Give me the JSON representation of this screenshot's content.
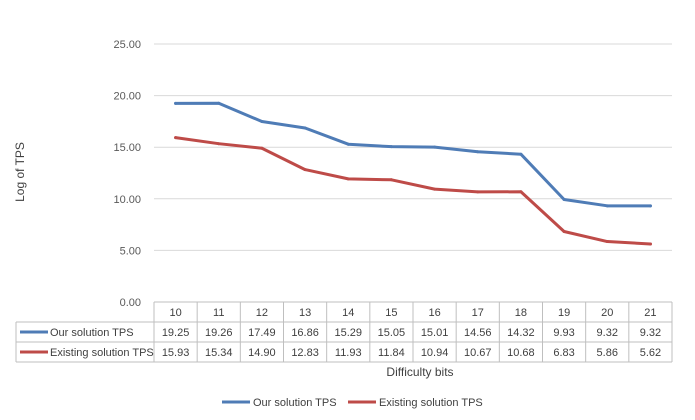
{
  "chart_data": {
    "type": "line",
    "title": "",
    "xlabel": "Difficulty bits",
    "ylabel": "Log of TPS",
    "categories": [
      "10",
      "11",
      "12",
      "13",
      "14",
      "15",
      "16",
      "17",
      "18",
      "19",
      "20",
      "21"
    ],
    "y_ticks": [
      "0.00",
      "5.00",
      "10.00",
      "15.00",
      "20.00",
      "25.00"
    ],
    "ylim": [
      0,
      25
    ],
    "grid": true,
    "data_table": true,
    "legend_position": "bottom",
    "series": [
      {
        "name": "Our solution TPS",
        "color": "#4F7CB6",
        "values": [
          19.25,
          19.26,
          17.49,
          16.86,
          15.29,
          15.05,
          15.01,
          14.56,
          14.32,
          9.93,
          9.32,
          9.32
        ],
        "labels": [
          "19.25",
          "19.26",
          "17.49",
          "16.86",
          "15.29",
          "15.05",
          "15.01",
          "14.56",
          "14.32",
          "9.93",
          "9.32",
          "9.32"
        ]
      },
      {
        "name": "Existing solution TPS",
        "color": "#BE4B48",
        "values": [
          15.93,
          15.34,
          14.9,
          12.83,
          11.93,
          11.84,
          10.94,
          10.67,
          10.68,
          6.83,
          5.86,
          5.62
        ],
        "labels": [
          "15.93",
          "15.34",
          "14.90",
          "12.83",
          "11.93",
          "11.84",
          "10.94",
          "10.67",
          "10.68",
          "6.83",
          "5.86",
          "5.62"
        ]
      }
    ]
  }
}
